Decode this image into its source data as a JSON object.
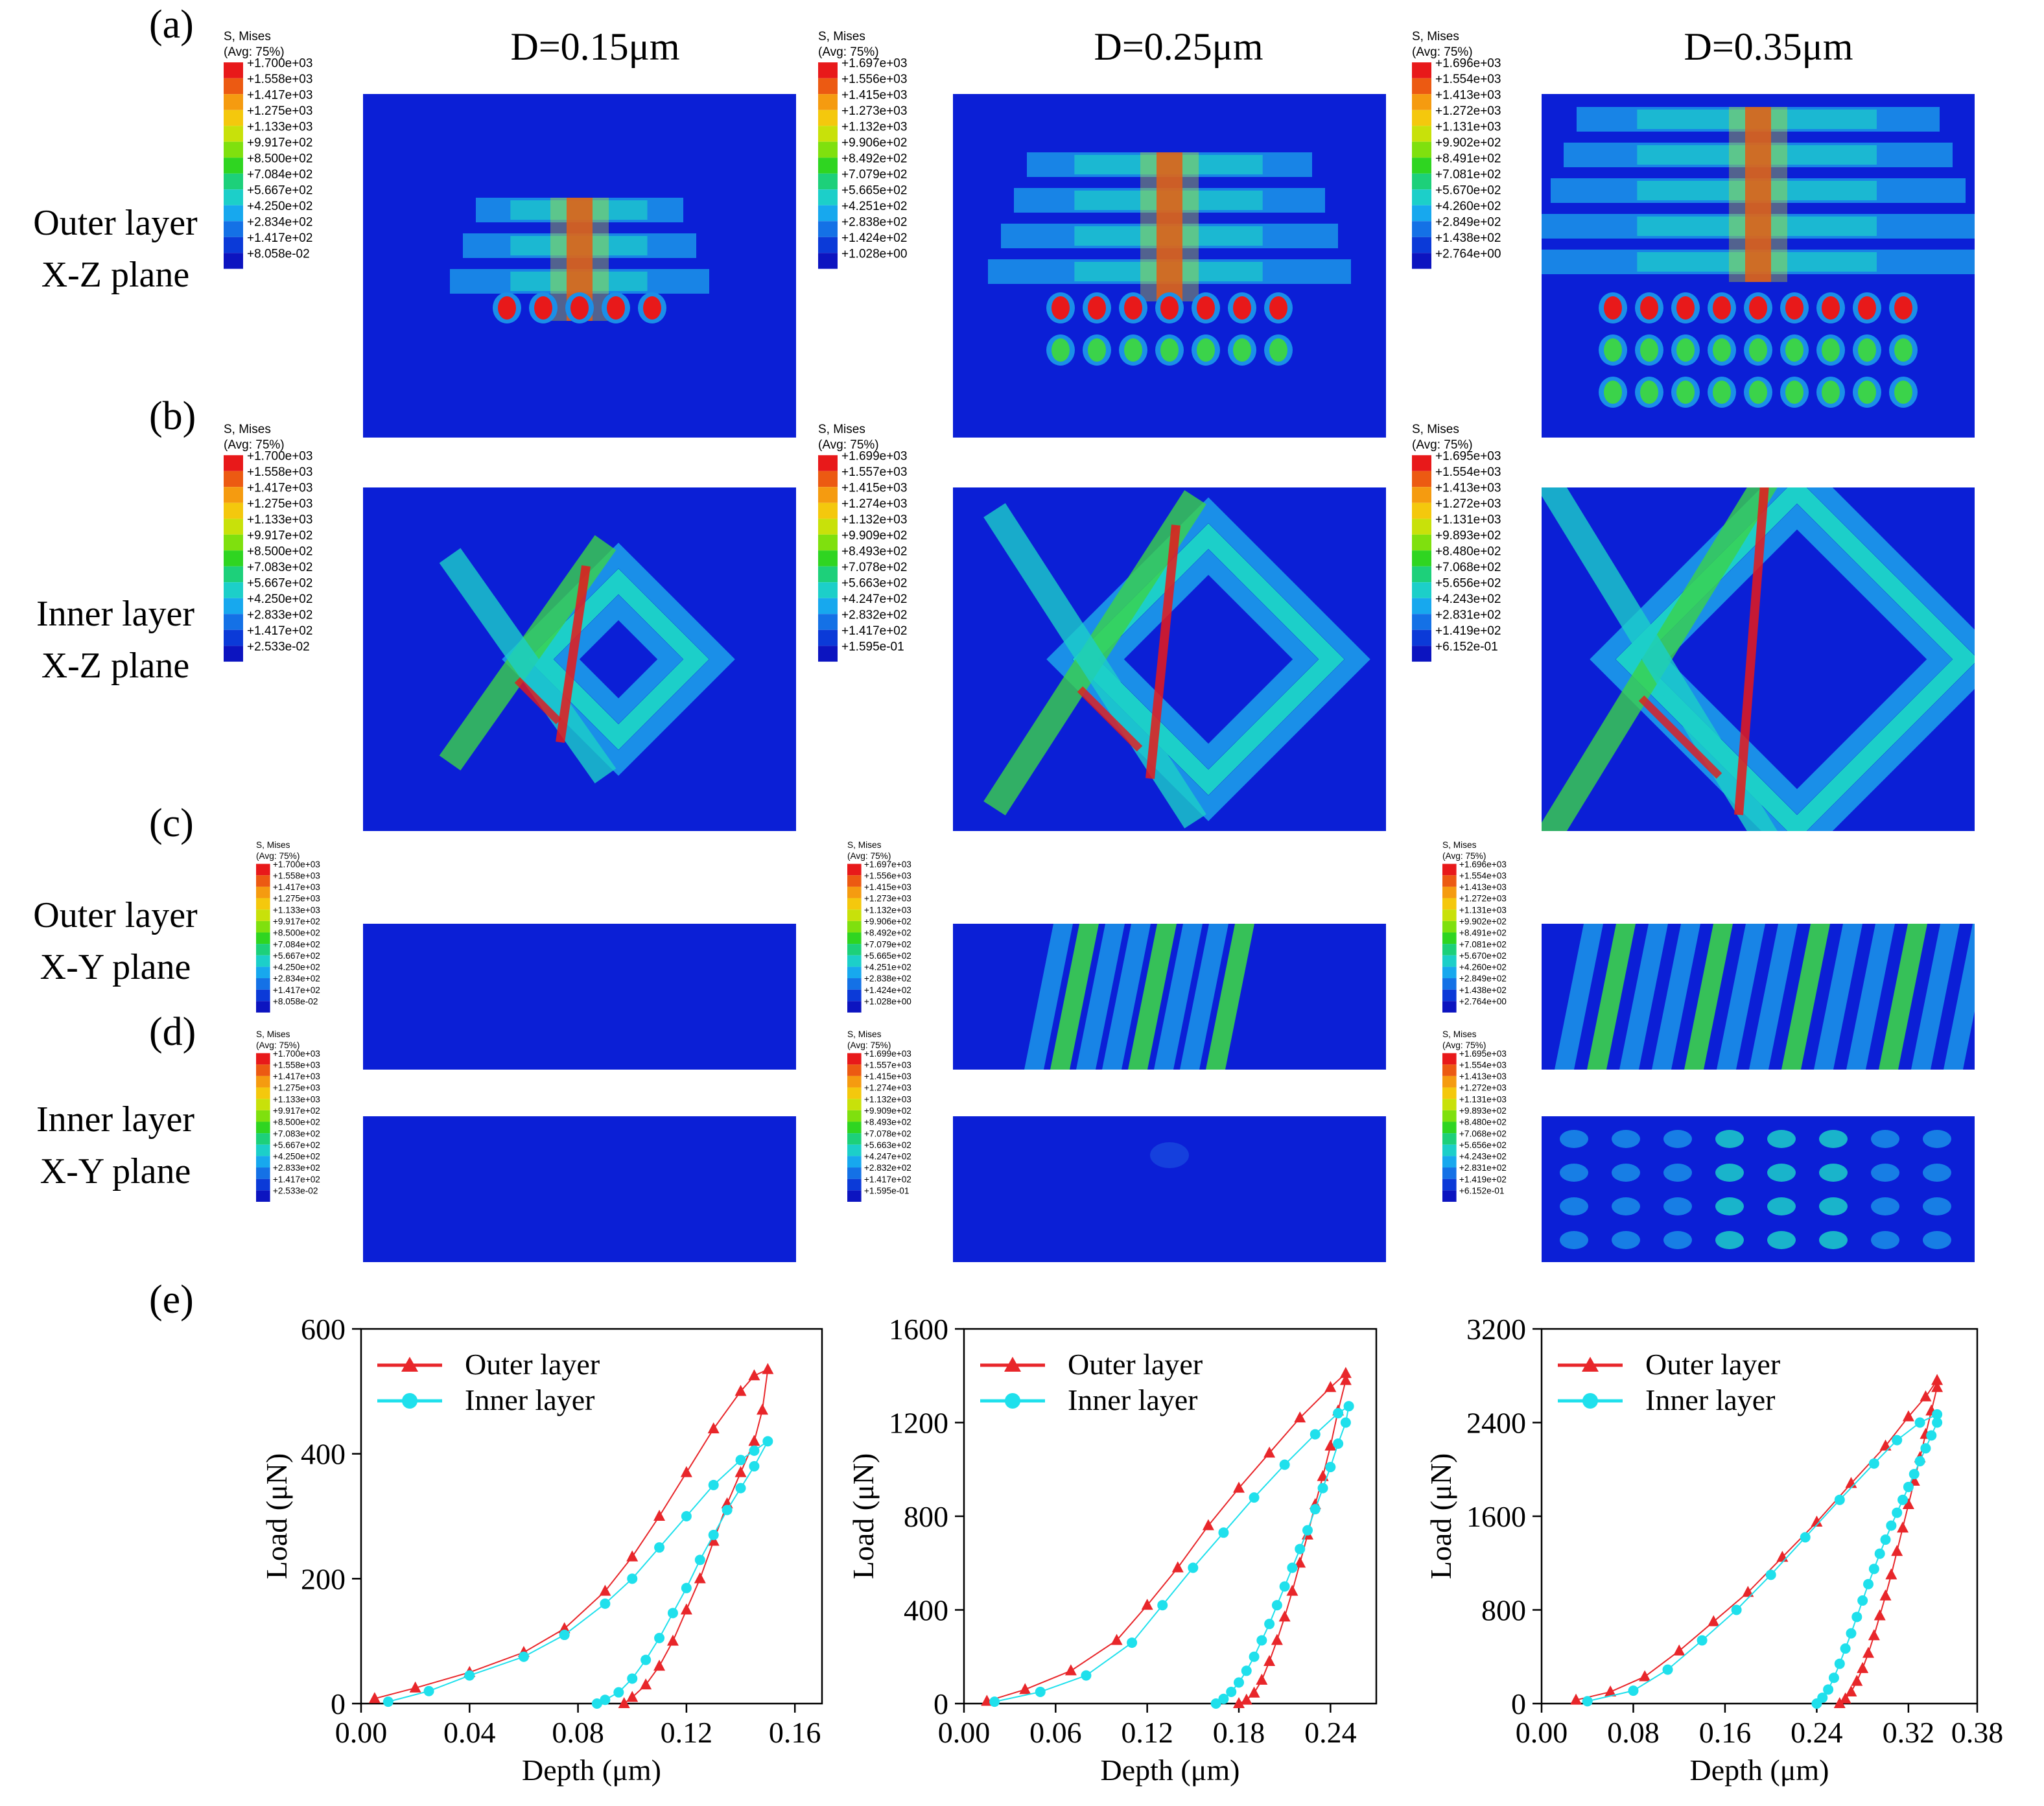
{
  "panel_labels": [
    "(a)",
    "(b)",
    "(c)",
    "(d)",
    "(e)"
  ],
  "column_titles": [
    "D=0.15μm",
    "D=0.25μm",
    "D=0.35μm"
  ],
  "row_labels": [
    [
      "Outer layer",
      "X-Z plane"
    ],
    [
      "Inner layer",
      "X-Z plane"
    ],
    [
      "Outer layer",
      "X-Y plane"
    ],
    [
      "Inner layer",
      "X-Y plane"
    ]
  ],
  "legend_header": [
    "S, Mises",
    "(Avg: 75%)"
  ],
  "colorbar_colors": [
    "#e8191a",
    "#ec5a12",
    "#f59b10",
    "#f4c80d",
    "#c8e10a",
    "#7fe00e",
    "#2fd521",
    "#1dd07a",
    "#1ccfc9",
    "#17a8ee",
    "#1471e6",
    "#0b3ad8",
    "#0c14c0"
  ],
  "legend_values": [
    [
      "+1.700e+03",
      "+1.558e+03",
      "+1.417e+03",
      "+1.275e+03",
      "+1.133e+03",
      "+9.917e+02",
      "+8.500e+02",
      "+7.084e+02",
      "+5.667e+02",
      "+4.250e+02",
      "+2.834e+02",
      "+1.417e+02",
      "+8.058e-02"
    ],
    [
      "+1.697e+03",
      "+1.556e+03",
      "+1.415e+03",
      "+1.273e+03",
      "+1.132e+03",
      "+9.906e+02",
      "+8.492e+02",
      "+7.079e+02",
      "+5.665e+02",
      "+4.251e+02",
      "+2.838e+02",
      "+1.424e+02",
      "+1.028e+00"
    ],
    [
      "+1.696e+03",
      "+1.554e+03",
      "+1.413e+03",
      "+1.272e+03",
      "+1.131e+03",
      "+9.902e+02",
      "+8.491e+02",
      "+7.081e+02",
      "+5.670e+02",
      "+4.260e+02",
      "+2.849e+02",
      "+1.438e+02",
      "+2.764e+00"
    ],
    [
      "+1.700e+03",
      "+1.558e+03",
      "+1.417e+03",
      "+1.275e+03",
      "+1.133e+03",
      "+9.917e+02",
      "+8.500e+02",
      "+7.083e+02",
      "+5.667e+02",
      "+4.250e+02",
      "+2.833e+02",
      "+1.417e+02",
      "+2.533e-02"
    ],
    [
      "+1.699e+03",
      "+1.557e+03",
      "+1.415e+03",
      "+1.274e+03",
      "+1.132e+03",
      "+9.909e+02",
      "+8.493e+02",
      "+7.078e+02",
      "+5.663e+02",
      "+4.247e+02",
      "+2.832e+02",
      "+1.417e+02",
      "+1.595e-01"
    ],
    [
      "+1.695e+03",
      "+1.554e+03",
      "+1.413e+03",
      "+1.272e+03",
      "+1.131e+03",
      "+9.893e+02",
      "+8.480e+02",
      "+7.068e+02",
      "+5.656e+02",
      "+4.243e+02",
      "+2.831e+02",
      "+1.419e+02",
      "+6.152e-01"
    ],
    [
      "+1.700e+03",
      "+1.558e+03",
      "+1.417e+03",
      "+1.275e+03",
      "+1.133e+03",
      "+9.917e+02",
      "+8.500e+02",
      "+7.084e+02",
      "+5.667e+02",
      "+4.250e+02",
      "+2.834e+02",
      "+1.417e+02",
      "+8.058e-02"
    ],
    [
      "+1.697e+03",
      "+1.556e+03",
      "+1.415e+03",
      "+1.273e+03",
      "+1.132e+03",
      "+9.906e+02",
      "+8.492e+02",
      "+7.079e+02",
      "+5.665e+02",
      "+4.251e+02",
      "+2.838e+02",
      "+1.424e+02",
      "+1.028e+00"
    ],
    [
      "+1.696e+03",
      "+1.554e+03",
      "+1.413e+03",
      "+1.272e+03",
      "+1.131e+03",
      "+9.902e+02",
      "+8.491e+02",
      "+7.081e+02",
      "+5.670e+02",
      "+4.260e+02",
      "+2.849e+02",
      "+1.438e+02",
      "+2.764e+00"
    ],
    [
      "+1.700e+03",
      "+1.558e+03",
      "+1.417e+03",
      "+1.275e+03",
      "+1.133e+03",
      "+9.917e+02",
      "+8.500e+02",
      "+7.083e+02",
      "+5.667e+02",
      "+4.250e+02",
      "+2.833e+02",
      "+1.417e+02",
      "+2.533e-02"
    ],
    [
      "+1.699e+03",
      "+1.557e+03",
      "+1.415e+03",
      "+1.274e+03",
      "+1.132e+03",
      "+9.909e+02",
      "+8.493e+02",
      "+7.078e+02",
      "+5.663e+02",
      "+4.247e+02",
      "+2.832e+02",
      "+1.417e+02",
      "+1.595e-01"
    ],
    [
      "+1.695e+03",
      "+1.554e+03",
      "+1.413e+03",
      "+1.272e+03",
      "+1.131e+03",
      "+9.893e+02",
      "+8.480e+02",
      "+7.068e+02",
      "+5.656e+02",
      "+4.243e+02",
      "+2.831e+02",
      "+1.419e+02",
      "+6.152e-01"
    ]
  ],
  "contour_colors": {
    "low": "#0b1fd6",
    "mid": "#1a8fe8",
    "cyan": "#1ccfc9",
    "green": "#3bd34a",
    "yellow": "#d8e00c",
    "red": "#e8191a"
  },
  "chart_data": [
    {
      "type": "line",
      "xlabel": "Depth (μm)",
      "ylabel": "Load (μN)",
      "xlim": [
        0,
        0.17
      ],
      "ylim": [
        0,
        600
      ],
      "xticks": [
        0.0,
        0.04,
        0.08,
        0.12,
        0.16
      ],
      "xtick_labels": [
        "0.00",
        "0.04",
        "0.08",
        "0.12",
        "0.16"
      ],
      "yticks": [
        0,
        200,
        400,
        600
      ],
      "ytick_labels": [
        "0",
        "200",
        "400",
        "600"
      ],
      "legend_position": "top-left",
      "series": [
        {
          "name": "Outer layer",
          "color": "#e8262a",
          "marker": "triangle",
          "x": [
            0.005,
            0.02,
            0.04,
            0.06,
            0.075,
            0.09,
            0.1,
            0.11,
            0.12,
            0.13,
            0.14,
            0.145,
            0.15,
            0.148,
            0.145,
            0.14,
            0.135,
            0.13,
            0.125,
            0.12,
            0.115,
            0.11,
            0.105,
            0.1,
            0.097
          ],
          "y": [
            8,
            25,
            50,
            82,
            120,
            180,
            235,
            300,
            370,
            440,
            500,
            525,
            535,
            470,
            420,
            370,
            320,
            260,
            200,
            150,
            100,
            60,
            30,
            10,
            0
          ]
        },
        {
          "name": "Inner layer",
          "color": "#1fe0ec",
          "marker": "circle",
          "x": [
            0.01,
            0.025,
            0.04,
            0.06,
            0.075,
            0.09,
            0.1,
            0.11,
            0.12,
            0.13,
            0.14,
            0.145,
            0.15,
            0.145,
            0.14,
            0.135,
            0.13,
            0.125,
            0.12,
            0.115,
            0.11,
            0.105,
            0.1,
            0.095,
            0.09,
            0.087
          ],
          "y": [
            3,
            20,
            45,
            75,
            110,
            160,
            200,
            250,
            300,
            350,
            390,
            405,
            420,
            380,
            345,
            310,
            270,
            230,
            185,
            145,
            105,
            70,
            40,
            18,
            6,
            0
          ]
        }
      ]
    },
    {
      "type": "line",
      "xlabel": "Depth (μm)",
      "ylabel": "Load (μN)",
      "xlim": [
        0,
        0.27
      ],
      "ylim": [
        0,
        1600
      ],
      "xticks": [
        0.0,
        0.06,
        0.12,
        0.18,
        0.24
      ],
      "xtick_labels": [
        "0.00",
        "0.06",
        "0.12",
        "0.18",
        "0.24"
      ],
      "yticks": [
        0,
        400,
        800,
        1200,
        1600
      ],
      "ytick_labels": [
        "0",
        "400",
        "800",
        "1200",
        "1600"
      ],
      "legend_position": "top-left",
      "series": [
        {
          "name": "Outer layer",
          "color": "#e8262a",
          "marker": "triangle",
          "x": [
            0.015,
            0.04,
            0.07,
            0.1,
            0.12,
            0.14,
            0.16,
            0.18,
            0.2,
            0.22,
            0.24,
            0.25,
            0.25,
            0.245,
            0.24,
            0.235,
            0.23,
            0.225,
            0.22,
            0.215,
            0.21,
            0.205,
            0.2,
            0.195,
            0.19,
            0.185,
            0.18
          ],
          "y": [
            10,
            60,
            140,
            270,
            420,
            580,
            760,
            920,
            1070,
            1220,
            1350,
            1410,
            1380,
            1250,
            1100,
            970,
            850,
            720,
            600,
            480,
            370,
            270,
            180,
            100,
            45,
            15,
            0
          ]
        },
        {
          "name": "Inner layer",
          "color": "#1fe0ec",
          "marker": "circle",
          "x": [
            0.02,
            0.05,
            0.08,
            0.11,
            0.13,
            0.15,
            0.17,
            0.19,
            0.21,
            0.23,
            0.245,
            0.252,
            0.25,
            0.245,
            0.24,
            0.235,
            0.23,
            0.225,
            0.22,
            0.215,
            0.21,
            0.205,
            0.2,
            0.195,
            0.19,
            0.185,
            0.18,
            0.175,
            0.17,
            0.165
          ],
          "y": [
            8,
            50,
            120,
            260,
            420,
            580,
            730,
            880,
            1020,
            1150,
            1240,
            1270,
            1200,
            1110,
            1010,
            920,
            830,
            740,
            660,
            580,
            500,
            420,
            340,
            270,
            200,
            140,
            90,
            50,
            20,
            0
          ]
        }
      ]
    },
    {
      "type": "line",
      "xlabel": "Depth (μm)",
      "ylabel": "Load (μN)",
      "xlim": [
        0,
        0.38
      ],
      "ylim": [
        0,
        3200
      ],
      "xticks": [
        0.0,
        0.08,
        0.16,
        0.24,
        0.32,
        0.38
      ],
      "xtick_labels": [
        "0.00",
        "0.08",
        "0.16",
        "0.24",
        "0.32",
        "0.38"
      ],
      "yticks": [
        0,
        800,
        1600,
        2400,
        3200
      ],
      "ytick_labels": [
        "0",
        "800",
        "1600",
        "2400",
        "3200"
      ],
      "legend_position": "top-left",
      "series": [
        {
          "name": "Outer layer",
          "color": "#e8262a",
          "marker": "triangle",
          "x": [
            0.03,
            0.06,
            0.09,
            0.12,
            0.15,
            0.18,
            0.21,
            0.24,
            0.27,
            0.3,
            0.32,
            0.335,
            0.345,
            0.345,
            0.34,
            0.335,
            0.33,
            0.325,
            0.32,
            0.315,
            0.31,
            0.305,
            0.3,
            0.295,
            0.29,
            0.285,
            0.28,
            0.275,
            0.27,
            0.265,
            0.26
          ],
          "y": [
            30,
            100,
            230,
            450,
            700,
            950,
            1250,
            1550,
            1880,
            2200,
            2450,
            2620,
            2760,
            2700,
            2500,
            2300,
            2100,
            1900,
            1700,
            1500,
            1300,
            1100,
            920,
            750,
            580,
            430,
            300,
            190,
            100,
            40,
            0
          ]
        },
        {
          "name": "Inner layer",
          "color": "#1fe0ec",
          "marker": "circle",
          "x": [
            0.04,
            0.08,
            0.11,
            0.14,
            0.17,
            0.2,
            0.23,
            0.26,
            0.29,
            0.31,
            0.33,
            0.345,
            0.345,
            0.34,
            0.335,
            0.33,
            0.325,
            0.32,
            0.315,
            0.31,
            0.305,
            0.3,
            0.295,
            0.29,
            0.285,
            0.28,
            0.275,
            0.27,
            0.265,
            0.26,
            0.255,
            0.25,
            0.245,
            0.24
          ],
          "y": [
            20,
            110,
            290,
            540,
            800,
            1100,
            1420,
            1740,
            2050,
            2250,
            2400,
            2470,
            2400,
            2290,
            2180,
            2070,
            1960,
            1850,
            1740,
            1630,
            1520,
            1400,
            1280,
            1150,
            1020,
            880,
            740,
            600,
            470,
            340,
            220,
            120,
            50,
            0
          ]
        }
      ]
    }
  ]
}
